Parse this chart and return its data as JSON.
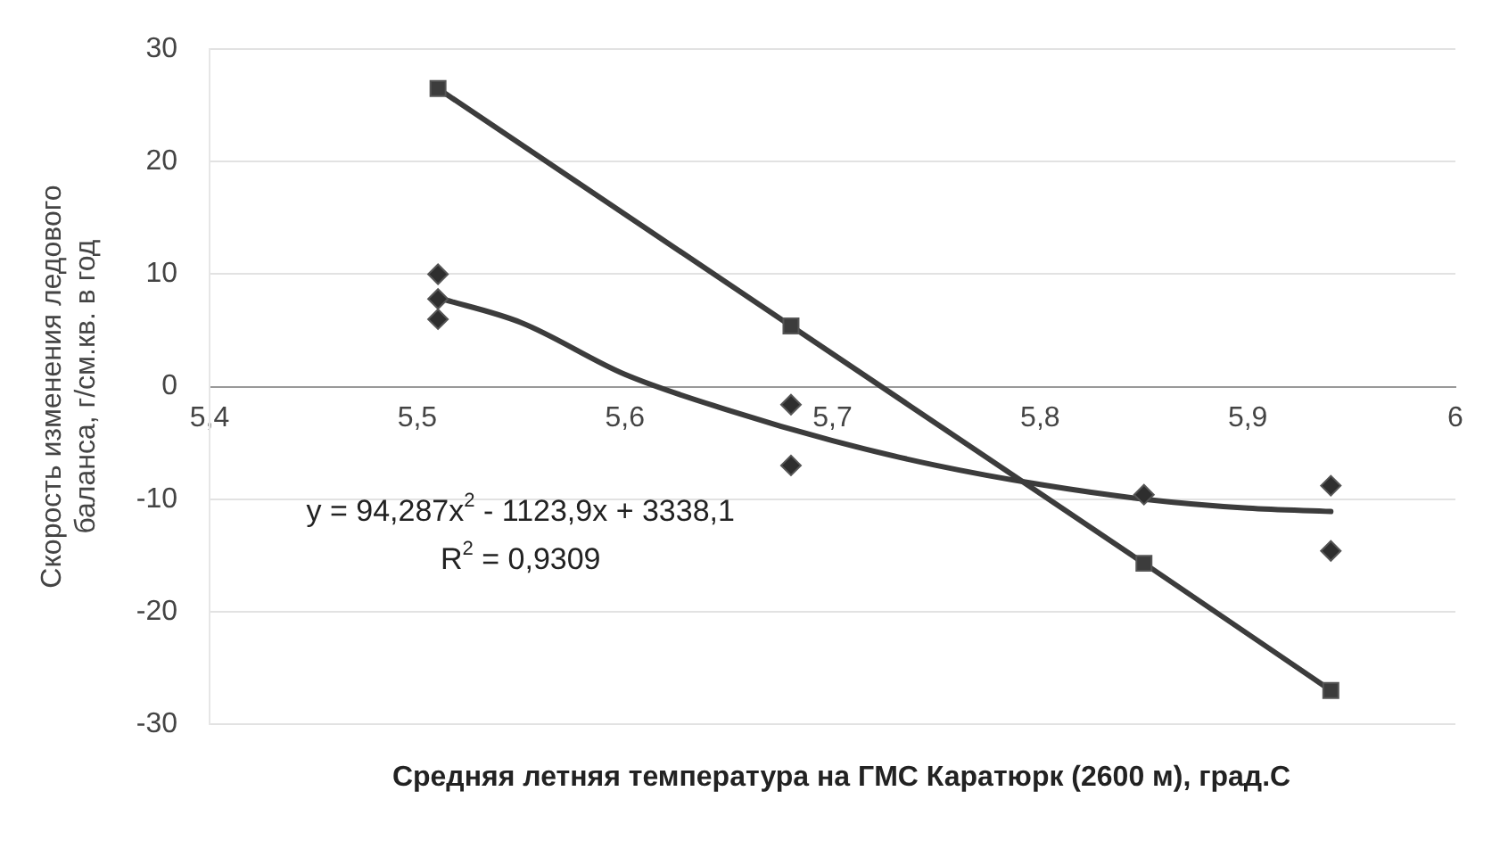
{
  "chart_data": {
    "type": "line",
    "xlabel": "Средняя летняя температура на ГМС Каратюрк (2600 м), град.С",
    "ylabel": "Скорость изменения ледового баланса, г/см.кв. в год",
    "xlim": [
      5.4,
      6
    ],
    "xticks": [
      {
        "value": 5.4,
        "label": "5,4"
      },
      {
        "value": 5.5,
        "label": "5,5"
      },
      {
        "value": 5.6,
        "label": "5,6"
      },
      {
        "value": 5.7,
        "label": "5,7"
      },
      {
        "value": 5.8,
        "label": "5,8"
      },
      {
        "value": 5.9,
        "label": "5,9"
      },
      6
    ],
    "ylim": [
      -30,
      30
    ],
    "yticks": [
      -30,
      -20,
      -10,
      0,
      10,
      20,
      30
    ],
    "grid": "y",
    "series": [
      {
        "marker": "square",
        "color": "#3c3c3c",
        "x": [
          5.51,
          5.68,
          5.85,
          5.94
        ],
        "values": [
          26.5,
          5.4,
          -15.7,
          -27
        ]
      },
      {
        "type": "scatter",
        "marker": "diamond",
        "color": "#2e2e2e",
        "x": [
          5.51,
          5.51,
          5.51,
          5.68,
          5.68,
          5.85,
          5.94,
          5.94
        ],
        "values": [
          10,
          7.8,
          6,
          -1.6,
          -7,
          -9.6,
          -8.8,
          -14.6
        ]
      },
      {
        "marker": "none",
        "color": "#3c3c3c",
        "x": [
          5.51,
          5.55,
          5.6,
          5.65,
          5.7,
          5.75,
          5.8,
          5.85,
          5.9,
          5.94
        ],
        "values": [
          7.9,
          5.7,
          1.1,
          -2.1,
          -4.8,
          -7.0,
          -8.7,
          -10.0,
          -10.8,
          -11.1
        ]
      }
    ],
    "annotations": [
      "y = 94,287x$^{2}$ - 1123,9x + 3338,1",
      "R$^{2}$ = 0,9309"
    ]
  }
}
